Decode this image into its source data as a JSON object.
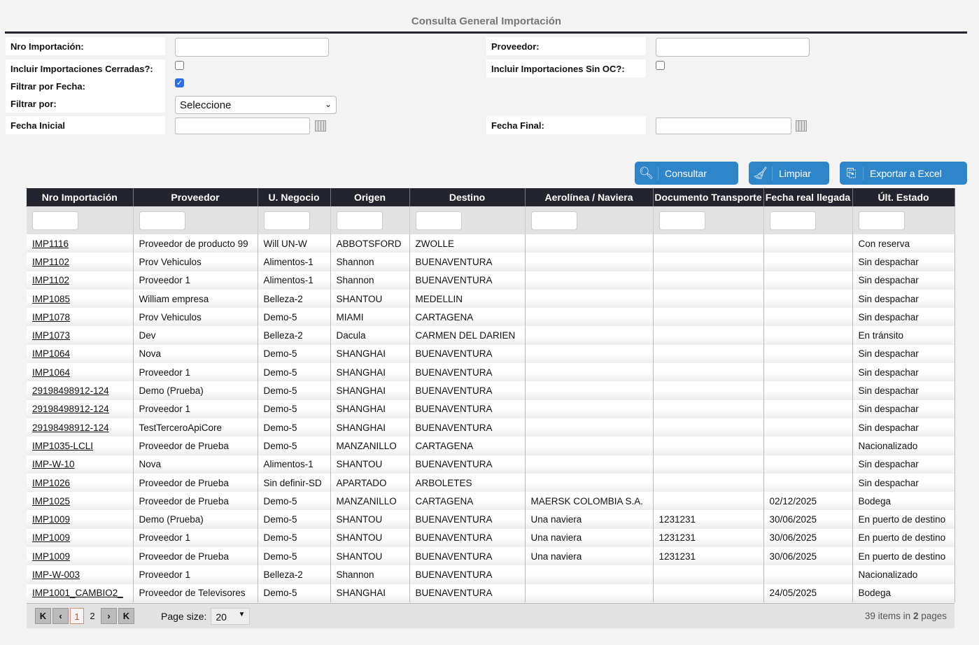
{
  "page": {
    "title": "Consulta General Importación"
  },
  "form": {
    "nro_label": "Nro Importación:",
    "proveedor_label": "Proveedor:",
    "cerradas_label": "Incluir Importaciones Cerradas?:",
    "cerradas_checked": false,
    "sin_oc_label": "Incluir Importaciones Sin OC?:",
    "sin_oc_checked": false,
    "filtrar_fecha_label": "Filtrar por Fecha:",
    "filtrar_fecha_checked": true,
    "filtrar_por_label": "Filtrar por:",
    "filtrar_por_value": "Seleccione",
    "fecha_inicial_label": "Fecha Inicial",
    "fecha_final_label": "Fecha Final:"
  },
  "buttons": {
    "consultar": "Consultar",
    "limpiar": "Limpiar",
    "exportar": "Exportar a Excel"
  },
  "table": {
    "columns": [
      "Nro Importación",
      "Proveedor",
      "U. Negocio",
      "Origen",
      "Destino",
      "Aerolínea / Naviera",
      "Documento Transporte",
      "Fecha real llegada",
      "Últ. Estado"
    ],
    "rows": [
      [
        "IMP1116",
        "Proveedor de producto 99",
        "Will UN-W",
        "ABBOTSFORD",
        "ZWOLLE",
        "",
        "",
        "",
        "Con reserva"
      ],
      [
        "IMP1102",
        "Prov Vehiculos",
        "Alimentos-1",
        "Shannon",
        "BUENAVENTURA",
        "",
        "",
        "",
        "Sin despachar"
      ],
      [
        "IMP1102",
        "Proveedor 1",
        "Alimentos-1",
        "Shannon",
        "BUENAVENTURA",
        "",
        "",
        "",
        "Sin despachar"
      ],
      [
        "IMP1085",
        "William empresa",
        "Belleza-2",
        "SHANTOU",
        "MEDELLIN",
        "",
        "",
        "",
        "Sin despachar"
      ],
      [
        "IMP1078",
        "Prov Vehiculos",
        "Demo-5",
        "MIAMI",
        "CARTAGENA",
        "",
        "",
        "",
        "Sin despachar"
      ],
      [
        "IMP1073",
        "Dev",
        "Belleza-2",
        "Dacula",
        "CARMEN DEL DARIEN",
        "",
        "",
        "",
        "En tránsito"
      ],
      [
        "IMP1064",
        "Nova",
        "Demo-5",
        "SHANGHAI",
        "BUENAVENTURA",
        "",
        "",
        "",
        "Sin despachar"
      ],
      [
        "IMP1064",
        "Proveedor 1",
        "Demo-5",
        "SHANGHAI",
        "BUENAVENTURA",
        "",
        "",
        "",
        "Sin despachar"
      ],
      [
        "29198498912-124",
        "Demo (Prueba)",
        "Demo-5",
        "SHANGHAI",
        "BUENAVENTURA",
        "",
        "",
        "",
        "Sin despachar"
      ],
      [
        "29198498912-124",
        "Proveedor 1",
        "Demo-5",
        "SHANGHAI",
        "BUENAVENTURA",
        "",
        "",
        "",
        "Sin despachar"
      ],
      [
        "29198498912-124",
        "TestTerceroApiCore",
        "Demo-5",
        "SHANGHAI",
        "BUENAVENTURA",
        "",
        "",
        "",
        "Sin despachar"
      ],
      [
        "IMP1035-LCLI",
        "Proveedor de Prueba",
        "Demo-5",
        "MANZANILLO",
        "CARTAGENA",
        "",
        "",
        "",
        "Nacionalizado"
      ],
      [
        "IMP-W-10",
        "Nova",
        "Alimentos-1",
        "SHANTOU",
        "BUENAVENTURA",
        "",
        "",
        "",
        "Sin despachar"
      ],
      [
        "IMP1026",
        "Proveedor de Prueba",
        "Sin definir-SD",
        "APARTADO",
        "ARBOLETES",
        "",
        "",
        "",
        "Sin despachar"
      ],
      [
        "IMP1025",
        "Proveedor de Prueba",
        "Demo-5",
        "MANZANILLO",
        "CARTAGENA",
        "MAERSK COLOMBIA S.A.",
        "",
        "02/12/2025",
        "Bodega"
      ],
      [
        "IMP1009",
        "Demo (Prueba)",
        "Demo-5",
        "SHANTOU",
        "BUENAVENTURA",
        "Una naviera",
        "1231231",
        "30/06/2025",
        "En puerto de destino"
      ],
      [
        "IMP1009",
        "Proveedor 1",
        "Demo-5",
        "SHANTOU",
        "BUENAVENTURA",
        "Una naviera",
        "1231231",
        "30/06/2025",
        "En puerto de destino"
      ],
      [
        "IMP1009",
        "Proveedor de Prueba",
        "Demo-5",
        "SHANTOU",
        "BUENAVENTURA",
        "Una naviera",
        "1231231",
        "30/06/2025",
        "En puerto de destino"
      ],
      [
        "IMP-W-003",
        "Proveedor 1",
        "Belleza-2",
        "Shannon",
        "BUENAVENTURA",
        "",
        "",
        "",
        "Nacionalizado"
      ],
      [
        "IMP1001_CAMBIO2_",
        "Proveedor de Televisores",
        "Demo-5",
        "SHANGHAI",
        "BUENAVENTURA",
        "",
        "",
        "24/05/2025",
        "Bodega"
      ]
    ]
  },
  "pager": {
    "pages": [
      "1",
      "2"
    ],
    "current": "1",
    "page_size_label": "Page size:",
    "page_size": "20",
    "info_count": "39",
    "info_mid": " items in ",
    "info_pages": "2",
    "info_end": " pages"
  }
}
